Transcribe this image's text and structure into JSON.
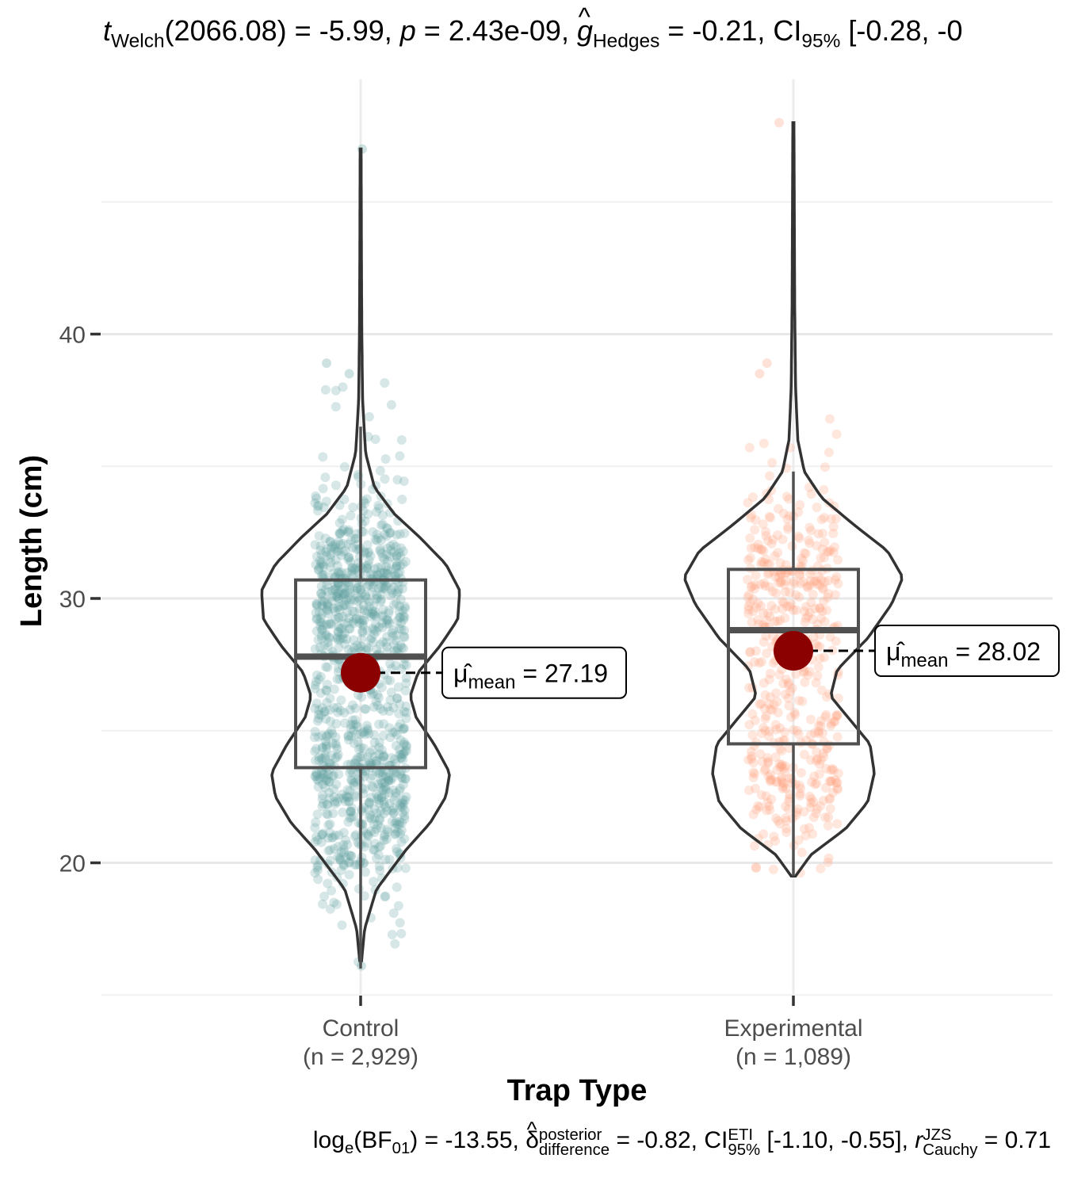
{
  "chart_data": {
    "type": "violin-box-scatter",
    "title_parts": {
      "t_sym": "t",
      "t_sub": "Welch",
      "df": "(2066.08)",
      "t_val": " = -5.99, ",
      "p_sym": "p",
      "p_val": " = 2.43e-09, ",
      "g_sym": "g",
      "g_sub": "Hedges",
      "g_val": " = -0.21, CI",
      "ci_sub": "95%",
      "ci_val": " [-0.28, -0"
    },
    "caption_parts": {
      "log": "log",
      "log_sub": "e",
      "bf": "(BF",
      "bf_sub": "01",
      "bf_val": ") = -13.55, ",
      "delta": "δ",
      "delta_sup": "posterior",
      "delta_sub": "difference",
      "delta_val": " = -0.82, CI",
      "ci_sup": "ETI",
      "ci_sub": "95%",
      "ci_val": " [-1.10, -0.55], ",
      "r_sym": "r",
      "r_sup": "JZS",
      "r_sub": "Cauchy",
      "r_val": " = 0.71"
    },
    "xlabel": "Trap Type",
    "ylabel": "Length (cm)",
    "ylim": [
      15,
      49
    ],
    "yticks": [
      20,
      30,
      40
    ],
    "grid": true,
    "groups": [
      {
        "category": "Control",
        "n_label": "(n = 2,929)",
        "color": "#5F9EA0",
        "mean": 27.19,
        "mean_label": "27.19",
        "box": {
          "q1": 23.6,
          "median": 27.8,
          "q3": 30.7,
          "whisker_low": 16.0,
          "whisker_high": 36.5
        },
        "violin_min": 16.3,
        "violin_max": 47.0,
        "violin_profile": [
          [
            16.3,
            0.01
          ],
          [
            17.5,
            0.04
          ],
          [
            19.0,
            0.16
          ],
          [
            20.5,
            0.46
          ],
          [
            21.5,
            0.7
          ],
          [
            22.5,
            0.86
          ],
          [
            23.4,
            0.9
          ],
          [
            24.5,
            0.74
          ],
          [
            25.5,
            0.56
          ],
          [
            26.3,
            0.5
          ],
          [
            27.2,
            0.58
          ],
          [
            28.2,
            0.8
          ],
          [
            29.2,
            0.98
          ],
          [
            30.3,
            1.0
          ],
          [
            31.3,
            0.86
          ],
          [
            32.3,
            0.6
          ],
          [
            33.2,
            0.34
          ],
          [
            34.2,
            0.14
          ],
          [
            35.5,
            0.05
          ],
          [
            37.5,
            0.02
          ],
          [
            40.0,
            0.012
          ],
          [
            43.0,
            0.008
          ],
          [
            47.0,
            0.005
          ]
        ],
        "outliers": [
          16.1,
          38.5,
          38.9,
          47.0
        ]
      },
      {
        "category": "Experimental",
        "n_label": "(n = 1,089)",
        "color": "#FFA07A",
        "mean": 28.02,
        "mean_label": "28.02",
        "box": {
          "q1": 24.5,
          "median": 28.8,
          "q3": 31.1,
          "whisker_low": 19.5,
          "whisker_high": 34.8
        },
        "violin_min": 19.5,
        "violin_max": 48.0,
        "violin_profile": [
          [
            19.5,
            0.02
          ],
          [
            20.3,
            0.16
          ],
          [
            21.3,
            0.48
          ],
          [
            22.3,
            0.68
          ],
          [
            23.4,
            0.74
          ],
          [
            24.5,
            0.7
          ],
          [
            25.5,
            0.5
          ],
          [
            26.3,
            0.34
          ],
          [
            27.3,
            0.4
          ],
          [
            28.5,
            0.68
          ],
          [
            29.8,
            0.9
          ],
          [
            30.8,
            1.0
          ],
          [
            31.8,
            0.86
          ],
          [
            32.8,
            0.55
          ],
          [
            33.8,
            0.26
          ],
          [
            34.8,
            0.1
          ],
          [
            36.0,
            0.04
          ],
          [
            38.0,
            0.02
          ],
          [
            41.0,
            0.012
          ],
          [
            45.0,
            0.008
          ],
          [
            48.0,
            0.005
          ]
        ],
        "outliers": [
          38.5,
          38.9,
          48.0
        ]
      }
    ],
    "mean_point_color": "#8B0000"
  }
}
